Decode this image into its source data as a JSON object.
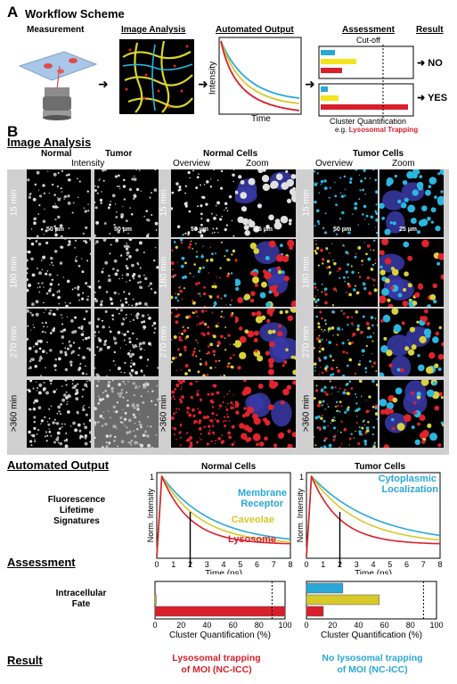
{
  "panelA": {
    "letter": "A",
    "title": "Workflow Scheme",
    "steps": [
      "Measurement",
      "Image Analysis",
      "Automated Output",
      "Assessment",
      "Result"
    ],
    "intensity_axis": "Intensity",
    "time_axis": "Time",
    "cutoff": "Cut-off",
    "result_no": "NO",
    "result_yes": "YES",
    "cluster_q": "Cluster Quantification",
    "example_prefix": "e.g.",
    "example_text": "Lysosomal Trapping"
  },
  "panelB": {
    "letter": "B",
    "image_analysis": "Image Analysis",
    "col_normal": "Normal",
    "col_tumor": "Tumor",
    "col_intensity": "Intensity",
    "normal_cells": "Normal Cells",
    "tumor_cells": "Tumor Cells",
    "overview": "Overview",
    "zoom": "Zoom",
    "times": [
      "15 min",
      "180 min",
      "270 min",
      ">360 min"
    ],
    "scale_50": "50 µm",
    "scale_25": "25 µm",
    "scale_50pm": "50 pm"
  },
  "output": {
    "title": "Automated Output",
    "left_title": "Fluorescence\nLifetime\nSignatures",
    "normal_cells": "Normal Cells",
    "tumor_cells": "Tumor Cells",
    "ylabel": "Norm. Intensity",
    "xlabel": "Time (ns)",
    "normal_labels": [
      "Membrane",
      "Receptor",
      "Caveolae",
      "Lysosome"
    ],
    "tumor_labels": [
      "Cytoplasmic",
      "Localization"
    ],
    "xticks": [
      "0",
      "1",
      "2",
      "3",
      "4",
      "5",
      "6",
      "7",
      "8"
    ],
    "colors": {
      "blue": "#29a8d8",
      "yellow": "#d8c92a",
      "red": "#d8202c"
    }
  },
  "assessment": {
    "title": "Assessment",
    "left_title": "Intracellular\nFate",
    "xlabel": "Cluster Quantification (%)",
    "xticks": [
      "0",
      "20",
      "40",
      "60",
      "80",
      "100"
    ],
    "normal_bars": {
      "blue": 0,
      "yellow": 1,
      "red": 100
    },
    "tumor_bars": {
      "blue": 28,
      "yellow": 56,
      "red": 13
    },
    "cutoff": 90
  },
  "result": {
    "title": "Result",
    "normal_text_1": "Lysosomal trapping",
    "normal_text_2": "of MOI (NC-ICC)",
    "tumor_text_1": "No lysosomal trapping",
    "tumor_text_2": "of MOI (NC-ICC)"
  }
}
